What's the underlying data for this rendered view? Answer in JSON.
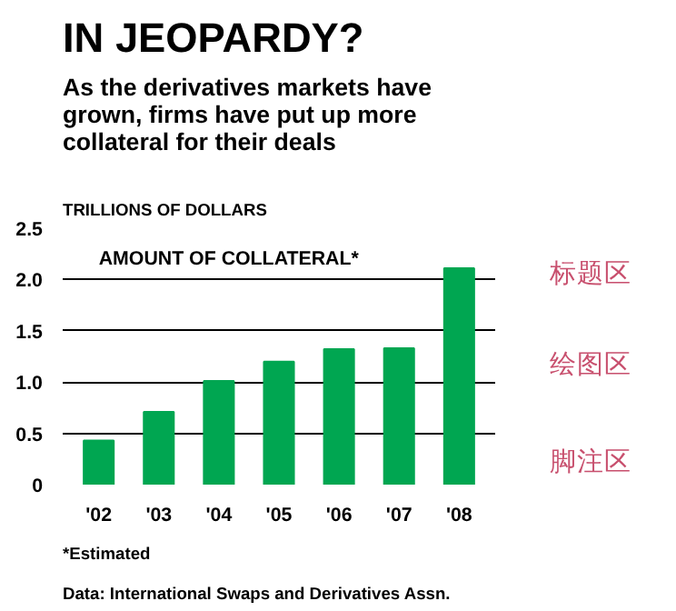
{
  "chart_data": {
    "type": "bar",
    "title": "IN JEOPARDY?",
    "subtitle": "As the derivatives markets have\ngrown, firms have put up more\ncollateral for their deals",
    "ylabel": "TRILLIONS OF DOLLARS",
    "categories": [
      "'02",
      "'03",
      "'04",
      "'05",
      "'06",
      "'07",
      "'08"
    ],
    "values": [
      0.43,
      0.71,
      1.01,
      1.2,
      1.32,
      1.33,
      2.11
    ],
    "color": "#00a651",
    "ylim": [
      0,
      2.5
    ],
    "yticks": [
      0,
      0.5,
      {
        "value": 1,
        "label": "1.0"
      },
      1.5,
      {
        "value": 2,
        "label": "2.0"
      },
      2.5
    ],
    "grid": "y",
    "annotations": [
      "AMOUNT OF COLLATERAL*",
      "*Estimated",
      "Data: International Swaps and Derivatives Assn.",
      "标题区",
      "绘图区",
      "脚注区"
    ]
  }
}
